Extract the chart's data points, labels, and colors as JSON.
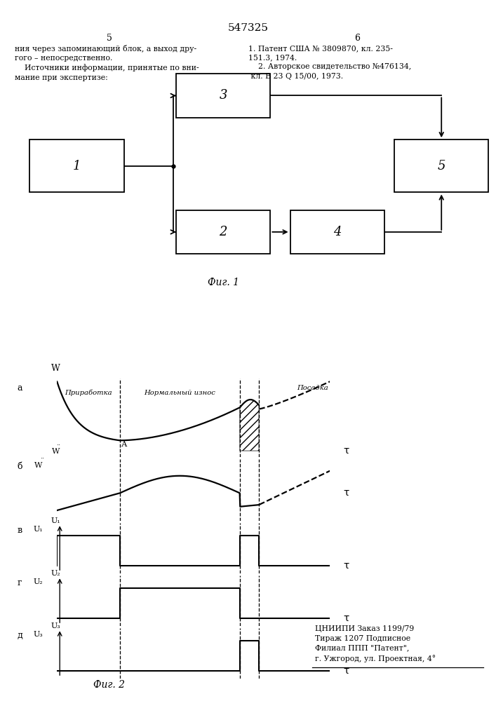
{
  "title": "547325",
  "page_left": "5",
  "page_right": "6",
  "text_left": "ния через запоминающий блок, а выход дру-\nгого – непосредственно.\n    Источники информации, принятые по вни-\nмание при экспертизе:",
  "text_right": "1. Патент США № 3809870, кл. 235-\n151.3, 1974.\n    2. Авторское свидетельство №476134,\n кл. В 23 Q 15/00, 1973.",
  "fig1_label": "Фиг. 1",
  "fig2_label": "Фиг. 2",
  "bottom_text": "ЦНИИПИ Заказ 1199/79\nТираж 1207 Подписное\nФилиал ППП \"Патент\",\nг. Ужгород, ул. Проектная, 4°",
  "xd1": 0.23,
  "xd2": 0.67,
  "xd3": 0.74,
  "bg_color": "#ffffff"
}
